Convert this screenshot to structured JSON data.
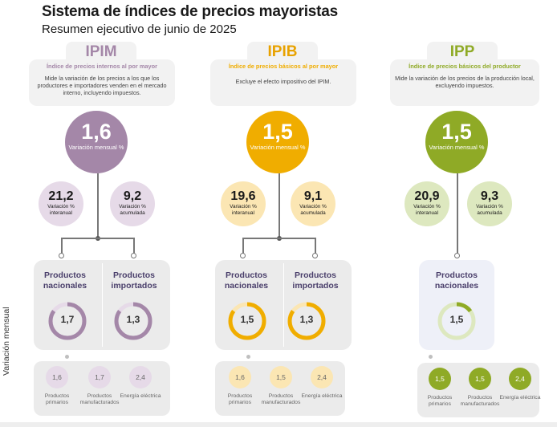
{
  "title": "Sistema de índices de precios mayoristas",
  "subtitle": "Resumen ejecutivo de junio de 2025",
  "side_label": "Variación mensual",
  "columns": [
    {
      "key": "IPIM",
      "tab": "IPIM",
      "heading": "Índice de precios internos al por mayor",
      "description": "Mide la variación de los precios a los que los productores e importadores venden en el mercado interno, incluyendo impuestos.",
      "color": "#a487a8",
      "tab_color": "#a487a8",
      "light_color": "#e6dae8",
      "mensual": "1,6",
      "mensual_label": "Variación mensual %",
      "interanual": "21,2",
      "interanual_label": "Variación % interanual",
      "acumulada": "9,2",
      "acumulada_label": "Variación % acumulada",
      "products": [
        {
          "name": "Productos nacionales",
          "value": "1,7",
          "progress": 0.85
        },
        {
          "name": "Productos importados",
          "value": "1,3",
          "progress": 0.85
        }
      ],
      "breakdown": [
        {
          "value": "1,6",
          "label": "Productos primarios"
        },
        {
          "value": "1,7",
          "label": "Productos manufacturados"
        },
        {
          "value": "2,4",
          "label": "Energía eléctrica"
        }
      ]
    },
    {
      "key": "IPIB",
      "tab": "IPIB",
      "heading": "Índice de precios básicos al por mayor",
      "description": "Excluye el efecto impositivo del IPIM.",
      "color": "#f0ad00",
      "tab_color": "#e8a200",
      "light_color": "#fbe6b3",
      "mensual": "1,5",
      "mensual_label": "Variación mensual %",
      "interanual": "19,6",
      "interanual_label": "Variación % interanual",
      "acumulada": "9,1",
      "acumulada_label": "Variación % acumulada",
      "products": [
        {
          "name": "Productos nacionales",
          "value": "1,5",
          "progress": 0.85
        },
        {
          "name": "Productos importados",
          "value": "1,3",
          "progress": 0.85
        }
      ],
      "breakdown": [
        {
          "value": "1,6",
          "label": "Productos primarios"
        },
        {
          "value": "1,5",
          "label": "Productos manufacturados"
        },
        {
          "value": "2,4",
          "label": "Energía eléctrica"
        }
      ]
    },
    {
      "key": "IPP",
      "tab": "IPP",
      "heading": "Índice de precios básicos del productor",
      "description": "Mide la variación de los precios de la producción local, excluyendo impuestos.",
      "color": "#8faa26",
      "tab_color": "#8faa26",
      "light_color": "#dde8bf",
      "mensual": "1,5",
      "mensual_label": "Variación mensual %",
      "interanual": "20,9",
      "interanual_label": "Variación % interanual",
      "acumulada": "9,3",
      "acumulada_label": "Variación % acumulada",
      "products": [
        {
          "name": "Productos nacionales",
          "value": "1,5",
          "progress": 0.15
        }
      ],
      "breakdown": [
        {
          "value": "1,5",
          "label": "Productos primarios"
        },
        {
          "value": "1,5",
          "label": "Productos manufacturados"
        },
        {
          "value": "2,4",
          "label": "Energía eléctrica"
        }
      ]
    }
  ]
}
